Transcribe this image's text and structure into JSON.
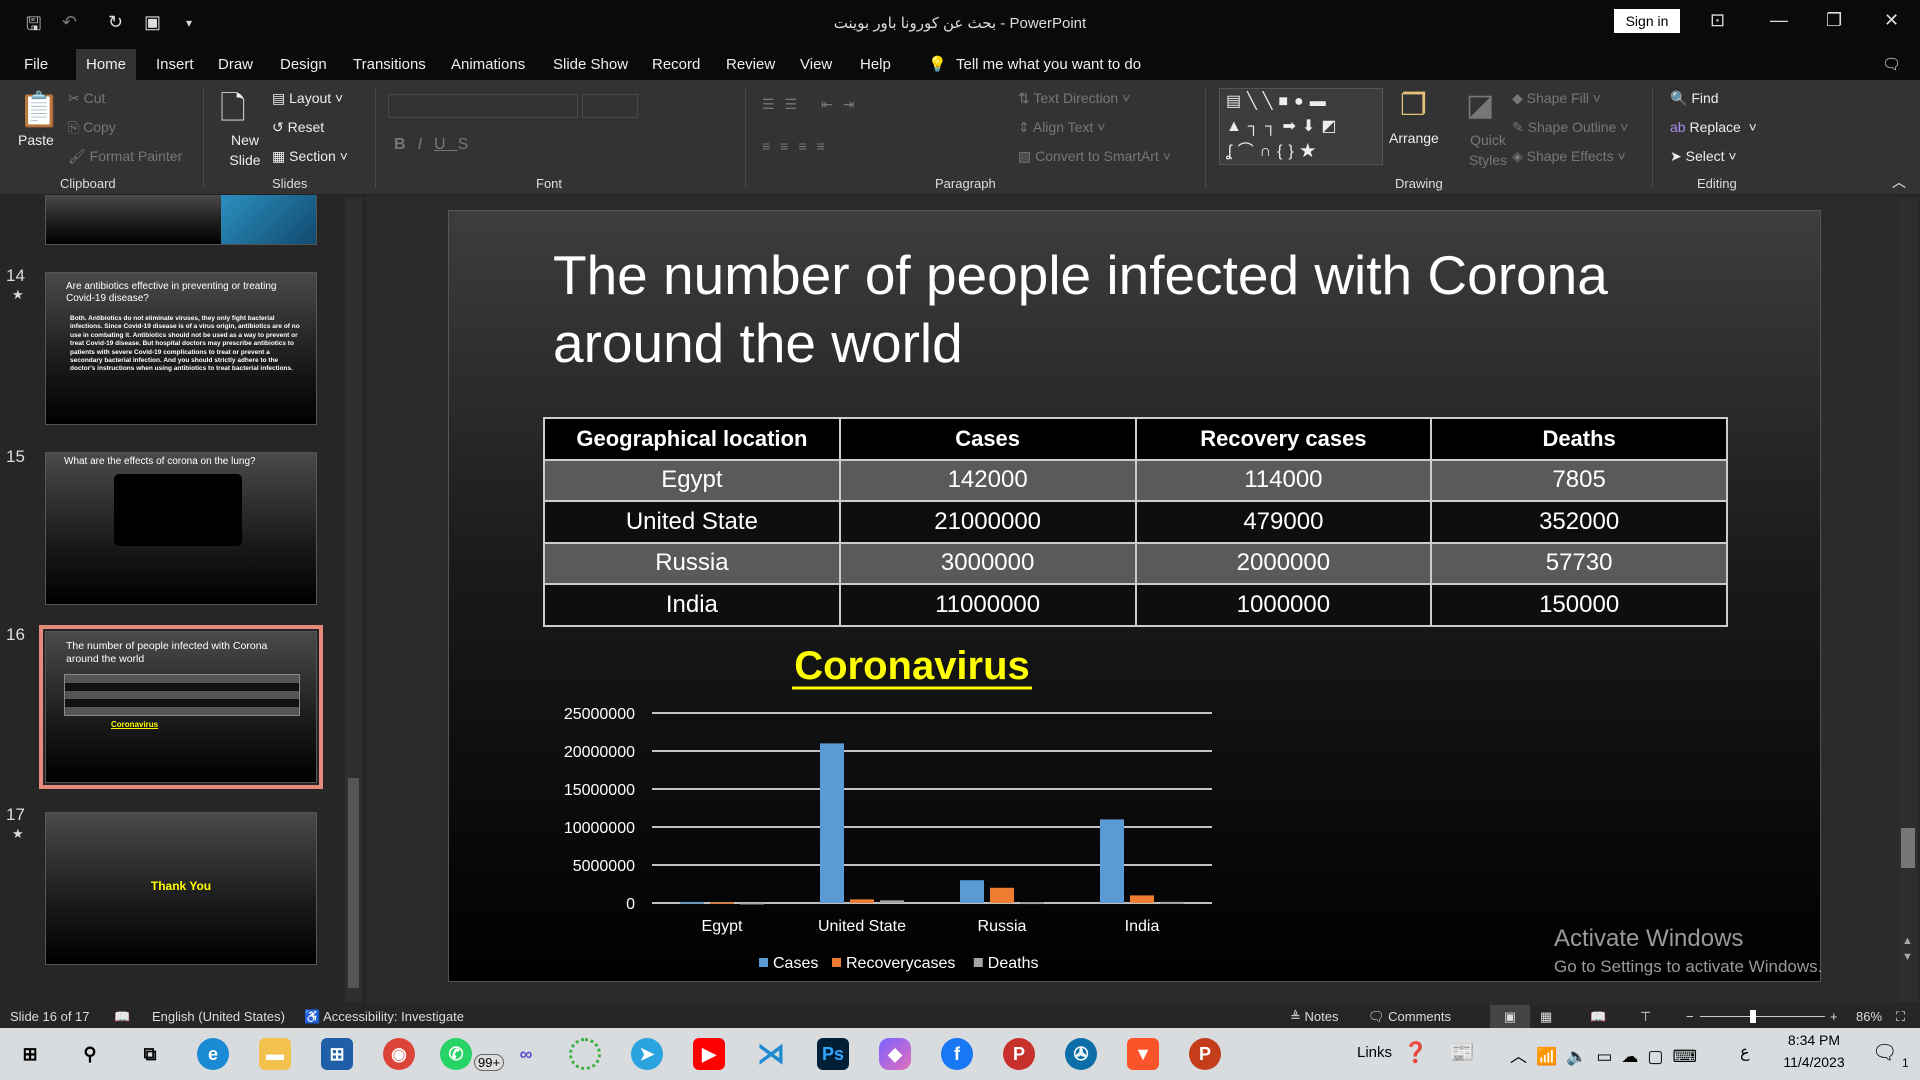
{
  "titlebar": {
    "title": "بحث عن كورونا باور بوينت  -  PowerPoint",
    "sign_in": "Sign in"
  },
  "menu": {
    "tabs": [
      "File",
      "Home",
      "Insert",
      "Draw",
      "Design",
      "Transitions",
      "Animations",
      "Slide Show",
      "Record",
      "Review",
      "View",
      "Help"
    ],
    "active": "Home",
    "tell_me": "Tell me what you want to do"
  },
  "ribbon": {
    "clipboard": {
      "paste": "Paste",
      "cut": "Cut",
      "copy": "Copy",
      "format_painter": "Format Painter",
      "label": "Clipboard"
    },
    "slides": {
      "new_slide": "New Slide",
      "layout": "Layout",
      "reset": "Reset",
      "section": "Section",
      "label": "Slides"
    },
    "font": {
      "label": "Font"
    },
    "paragraph": {
      "text_direction": "Text Direction",
      "align_text": "Align Text",
      "convert_smartart": "Convert to SmartArt",
      "label": "Paragraph"
    },
    "drawing": {
      "arrange": "Arrange",
      "quick_styles": "Quick Styles",
      "shape_fill": "Shape Fill",
      "shape_outline": "Shape Outline",
      "shape_effects": "Shape Effects",
      "label": "Drawing"
    },
    "editing": {
      "find": "Find",
      "replace": "Replace",
      "select": "Select",
      "label": "Editing"
    }
  },
  "thumbnails": [
    {
      "num": "14",
      "starred": true,
      "title": "Are antibiotics effective in preventing or treating Covid-19 disease?",
      "body": "Both. Antibiotics do not eliminate viruses, they only fight bacterial infections. Since Covid-19 disease is of a virus origin, antibiotics are of no use in combating it. Antibiotics should not be used as a way to prevent or treat Covid-19 disease. But hospital doctors may prescribe antibiotics to patients with severe Covid-19 complications to treat or prevent a secondary bacterial infection. And you should strictly adhere to the doctor's instructions when using antibiotics to treat bacterial infections."
    },
    {
      "num": "15",
      "starred": false,
      "title": "What are the effects of corona on the lung?"
    },
    {
      "num": "16",
      "starred": false,
      "title": "The number of people infected with Corona around the world",
      "selected": true
    },
    {
      "num": "17",
      "starred": true,
      "title": "Thank You"
    }
  ],
  "slide": {
    "title": "The number of people infected with Corona around the world",
    "table": {
      "headers": [
        "Geographical location",
        "Cases",
        "Recovery cases",
        "Deaths"
      ],
      "rows": [
        [
          "Egypt",
          "142000",
          "114000",
          "7805"
        ],
        [
          "United State",
          "21000000",
          "479000",
          "352000"
        ],
        [
          "Russia",
          "3000000",
          "2000000",
          "57730"
        ],
        [
          "India",
          "11000000",
          "1000000",
          "150000"
        ]
      ]
    }
  },
  "chart_data": {
    "type": "bar",
    "title": "Coronavirus",
    "categories": [
      "Egypt",
      "United State",
      "Russia",
      "India"
    ],
    "series": [
      {
        "name": "Cases",
        "values": [
          142000,
          21000000,
          3000000,
          11000000
        ],
        "color": "#5b9bd5"
      },
      {
        "name": "Recoverycases",
        "values": [
          114000,
          479000,
          2000000,
          1000000
        ],
        "color": "#ed7d31"
      },
      {
        "name": "Deaths",
        "values": [
          7805,
          352000,
          57730,
          150000
        ],
        "color": "#a5a5a5"
      }
    ],
    "ylim": [
      0,
      25000000
    ],
    "yticks": [
      "0",
      "5000000",
      "10000000",
      "15000000",
      "20000000",
      "25000000"
    ],
    "grid": true,
    "legend": "bottom",
    "title_color": "#ffff00"
  },
  "watermark": {
    "line1": "Activate Windows",
    "line2": "Go to Settings to activate Windows."
  },
  "status": {
    "slide": "Slide 16 of 17",
    "language": "English (United States)",
    "accessibility": "Accessibility: Investigate",
    "notes": "Notes",
    "comments": "Comments",
    "zoom": "86%"
  },
  "taskbar": {
    "links": "Links",
    "time": "8:34 PM",
    "date": "11/4/2023",
    "whatsapp_badge": "99+",
    "notif": "1",
    "lang": "ع"
  }
}
